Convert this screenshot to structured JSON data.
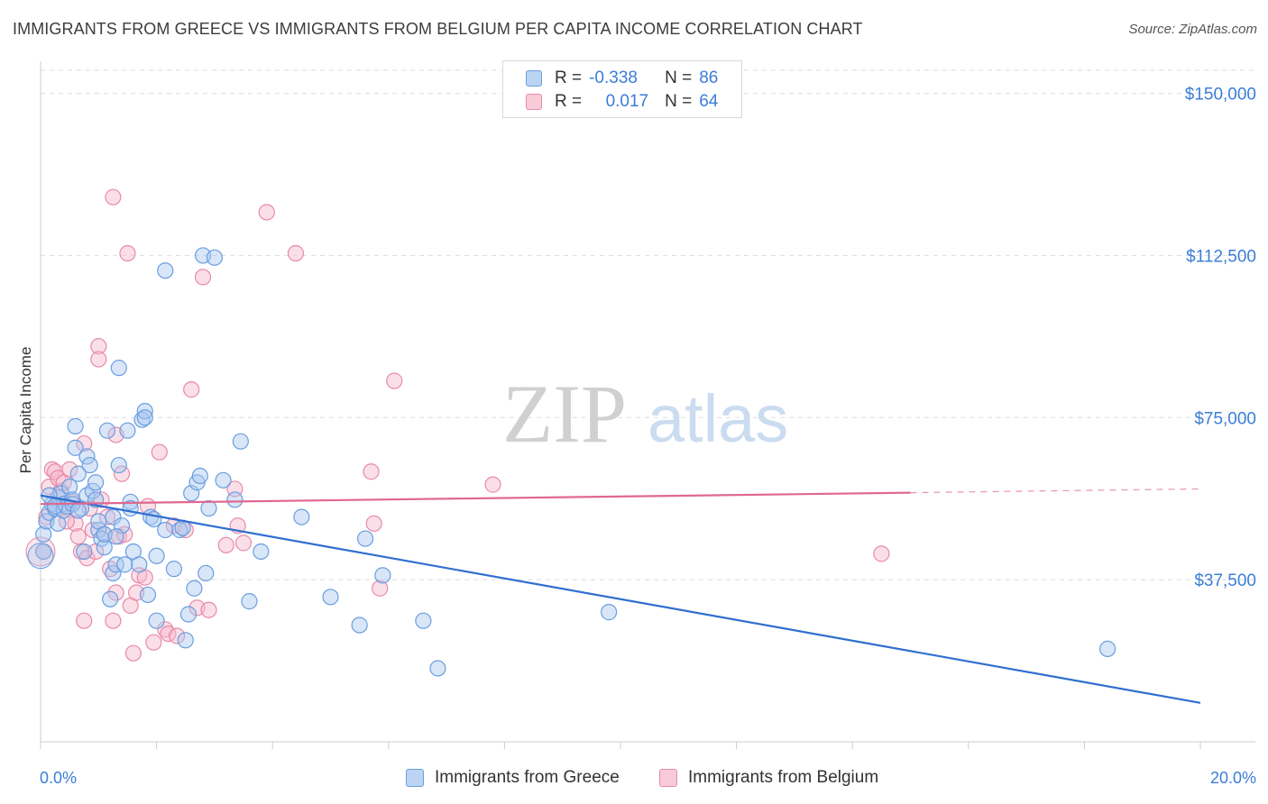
{
  "header": {
    "title": "IMMIGRANTS FROM GREECE VS IMMIGRANTS FROM BELGIUM PER CAPITA INCOME CORRELATION CHART",
    "source": "Source: ZipAtlas.com"
  },
  "watermark": {
    "zip": "ZIP",
    "atlas": "atlas"
  },
  "legend": {
    "rows": [
      {
        "r_label": "R =",
        "r_value": "-0.338",
        "n_label": "N =",
        "n_value": "86"
      },
      {
        "r_label": "R =",
        "r_value": "0.017",
        "n_label": "N =",
        "n_value": "64"
      }
    ]
  },
  "colors": {
    "greece_fill": "#a9c8f0",
    "greece_stroke": "#6a9edf",
    "greece_line": "#2f6fd0",
    "belgium_fill": "#f6b8cb",
    "belgium_stroke": "#e88aa8",
    "belgium_line": "#e06890",
    "tick_text": "#3b7dd8"
  },
  "chart_data": {
    "type": "scatter",
    "title": "IMMIGRANTS FROM GREECE VS IMMIGRANTS FROM BELGIUM PER CAPITA INCOME CORRELATION CHART",
    "xlabel": "",
    "ylabel": "Per Capita Income",
    "xlim": [
      0,
      20
    ],
    "ylim": [
      0,
      157000
    ],
    "x_tick_labels": [
      "0.0%",
      "20.0%"
    ],
    "y_ticks": [
      37500,
      75000,
      112500,
      150000
    ],
    "y_tick_labels": [
      "$37,500",
      "$75,000",
      "$112,500",
      "$150,000"
    ],
    "grid": true,
    "series": [
      {
        "name": "Immigrants from Greece",
        "r": -0.338,
        "n": 86,
        "trend": {
          "x": [
            0,
            20
          ],
          "y": [
            57000,
            9000
          ],
          "dashed_from": null
        },
        "points": [
          [
            0.05,
            44000
          ],
          [
            0.05,
            48000
          ],
          [
            0.1,
            51000
          ],
          [
            0.15,
            53000
          ],
          [
            0.2,
            55000
          ],
          [
            0.25,
            54000
          ],
          [
            0.3,
            56500
          ],
          [
            0.3,
            50500
          ],
          [
            0.35,
            57500
          ],
          [
            0.4,
            55000
          ],
          [
            0.4,
            53500
          ],
          [
            0.45,
            54500
          ],
          [
            0.5,
            59000
          ],
          [
            0.55,
            56000
          ],
          [
            0.6,
            68000
          ],
          [
            0.6,
            73000
          ],
          [
            0.65,
            62000
          ],
          [
            0.7,
            54000
          ],
          [
            0.75,
            44000
          ],
          [
            0.8,
            57000
          ],
          [
            0.8,
            66000
          ],
          [
            0.85,
            64000
          ],
          [
            0.9,
            58000
          ],
          [
            0.95,
            60000
          ],
          [
            1.0,
            49000
          ],
          [
            1.0,
            51000
          ],
          [
            1.05,
            47000
          ],
          [
            1.1,
            45000
          ],
          [
            1.15,
            72000
          ],
          [
            1.2,
            33000
          ],
          [
            1.25,
            39000
          ],
          [
            1.25,
            52000
          ],
          [
            1.3,
            41000
          ],
          [
            1.35,
            86500
          ],
          [
            1.35,
            64000
          ],
          [
            1.4,
            50000
          ],
          [
            1.45,
            41000
          ],
          [
            1.5,
            72000
          ],
          [
            1.55,
            55500
          ],
          [
            1.55,
            54000
          ],
          [
            1.6,
            44000
          ],
          [
            1.7,
            41000
          ],
          [
            1.75,
            74500
          ],
          [
            1.8,
            76500
          ],
          [
            1.8,
            75000
          ],
          [
            1.85,
            34000
          ],
          [
            1.9,
            52000
          ],
          [
            1.95,
            51500
          ],
          [
            2.0,
            28000
          ],
          [
            2.0,
            43000
          ],
          [
            2.15,
            109000
          ],
          [
            2.15,
            49000
          ],
          [
            2.3,
            40000
          ],
          [
            2.4,
            49000
          ],
          [
            2.45,
            49500
          ],
          [
            2.5,
            23500
          ],
          [
            2.55,
            29500
          ],
          [
            2.6,
            57500
          ],
          [
            2.65,
            35500
          ],
          [
            2.7,
            60000
          ],
          [
            2.75,
            61500
          ],
          [
            2.8,
            112500
          ],
          [
            2.85,
            39000
          ],
          [
            2.9,
            54000
          ],
          [
            3.0,
            112000
          ],
          [
            3.15,
            60500
          ],
          [
            3.35,
            56000
          ],
          [
            3.45,
            69500
          ],
          [
            3.6,
            32500
          ],
          [
            3.8,
            44000
          ],
          [
            4.5,
            52000
          ],
          [
            5.0,
            33500
          ],
          [
            5.5,
            27000
          ],
          [
            5.6,
            47000
          ],
          [
            5.9,
            38500
          ],
          [
            6.6,
            28000
          ],
          [
            6.85,
            17000
          ],
          [
            9.8,
            30000
          ],
          [
            18.4,
            21500
          ],
          [
            0.15,
            57000
          ],
          [
            0.55,
            55000
          ],
          [
            0.65,
            53500
          ],
          [
            0.95,
            56000
          ],
          [
            1.1,
            48000
          ],
          [
            1.3,
            47500
          ],
          [
            0.25,
            54500
          ]
        ]
      },
      {
        "name": "Immigrants from Belgium",
        "r": 0.017,
        "n": 64,
        "trend": {
          "x": [
            0,
            20
          ],
          "y": [
            55000,
            58500
          ],
          "dashed_from": 15
        },
        "points": [
          [
            0.05,
            44000
          ],
          [
            0.1,
            52000
          ],
          [
            0.15,
            59000
          ],
          [
            0.2,
            63000
          ],
          [
            0.25,
            62500
          ],
          [
            0.3,
            61000
          ],
          [
            0.35,
            58000
          ],
          [
            0.4,
            60000
          ],
          [
            0.45,
            54000
          ],
          [
            0.5,
            63000
          ],
          [
            0.55,
            55500
          ],
          [
            0.6,
            50500
          ],
          [
            0.65,
            47500
          ],
          [
            0.7,
            44000
          ],
          [
            0.75,
            69000
          ],
          [
            0.75,
            28000
          ],
          [
            0.8,
            42500
          ],
          [
            0.85,
            54000
          ],
          [
            0.9,
            49000
          ],
          [
            0.95,
            44000
          ],
          [
            1.0,
            91500
          ],
          [
            1.0,
            88500
          ],
          [
            1.05,
            56000
          ],
          [
            1.1,
            48000
          ],
          [
            1.15,
            52000
          ],
          [
            1.2,
            40000
          ],
          [
            1.25,
            126000
          ],
          [
            1.25,
            28000
          ],
          [
            1.3,
            71000
          ],
          [
            1.3,
            34500
          ],
          [
            1.35,
            47500
          ],
          [
            1.4,
            62000
          ],
          [
            1.45,
            48000
          ],
          [
            1.5,
            113000
          ],
          [
            1.55,
            31500
          ],
          [
            1.6,
            20500
          ],
          [
            1.65,
            34500
          ],
          [
            1.7,
            38500
          ],
          [
            1.8,
            38000
          ],
          [
            1.85,
            54500
          ],
          [
            1.95,
            23000
          ],
          [
            2.05,
            67000
          ],
          [
            2.15,
            26000
          ],
          [
            2.2,
            25000
          ],
          [
            2.3,
            50000
          ],
          [
            2.35,
            24500
          ],
          [
            2.5,
            49000
          ],
          [
            2.6,
            81500
          ],
          [
            2.7,
            31000
          ],
          [
            2.8,
            107500
          ],
          [
            2.9,
            30500
          ],
          [
            3.2,
            45500
          ],
          [
            3.35,
            58500
          ],
          [
            3.4,
            50000
          ],
          [
            3.5,
            46000
          ],
          [
            3.9,
            122500
          ],
          [
            4.4,
            113000
          ],
          [
            5.7,
            62500
          ],
          [
            5.75,
            50500
          ],
          [
            5.85,
            35500
          ],
          [
            6.1,
            83500
          ],
          [
            7.8,
            59500
          ],
          [
            14.5,
            43500
          ],
          [
            0.45,
            51000
          ]
        ]
      }
    ]
  },
  "bottom_legend": {
    "greece_label": "Immigrants from Greece",
    "belgium_label": "Immigrants from Belgium"
  }
}
